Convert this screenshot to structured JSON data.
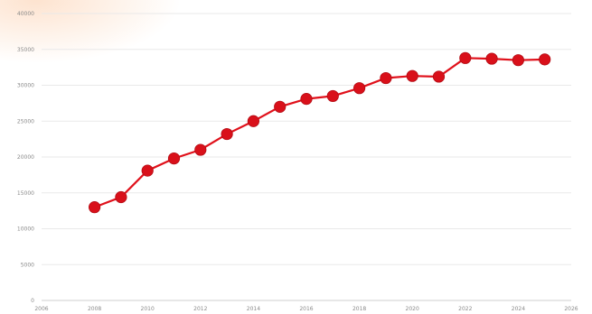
{
  "chart_data": {
    "type": "line",
    "title": "",
    "xlabel": "",
    "ylabel": "",
    "xlim": [
      2006,
      2026
    ],
    "ylim": [
      0,
      40000
    ],
    "x_ticks": [
      "2006",
      "2008",
      "2010",
      "2012",
      "2014",
      "2016",
      "2018",
      "2020",
      "2022",
      "2024",
      "2026"
    ],
    "y_ticks": [
      "0",
      "5000",
      "10000",
      "15000",
      "20000",
      "25000",
      "30000",
      "35000",
      "40000"
    ],
    "grid": true,
    "legend": "none",
    "series": [
      {
        "color": "#e0111b",
        "x": [
          2008,
          2009,
          2010,
          2011,
          2012,
          2013,
          2014,
          2015,
          2016,
          2017,
          2018,
          2019,
          2020,
          2021,
          2022,
          2023,
          2024,
          2025
        ],
        "y": [
          13000,
          14400,
          18100,
          19800,
          21000,
          23200,
          25000,
          27000,
          28100,
          28500,
          29600,
          31000,
          31300,
          31200,
          33800,
          33700,
          33500,
          33600
        ]
      }
    ]
  }
}
